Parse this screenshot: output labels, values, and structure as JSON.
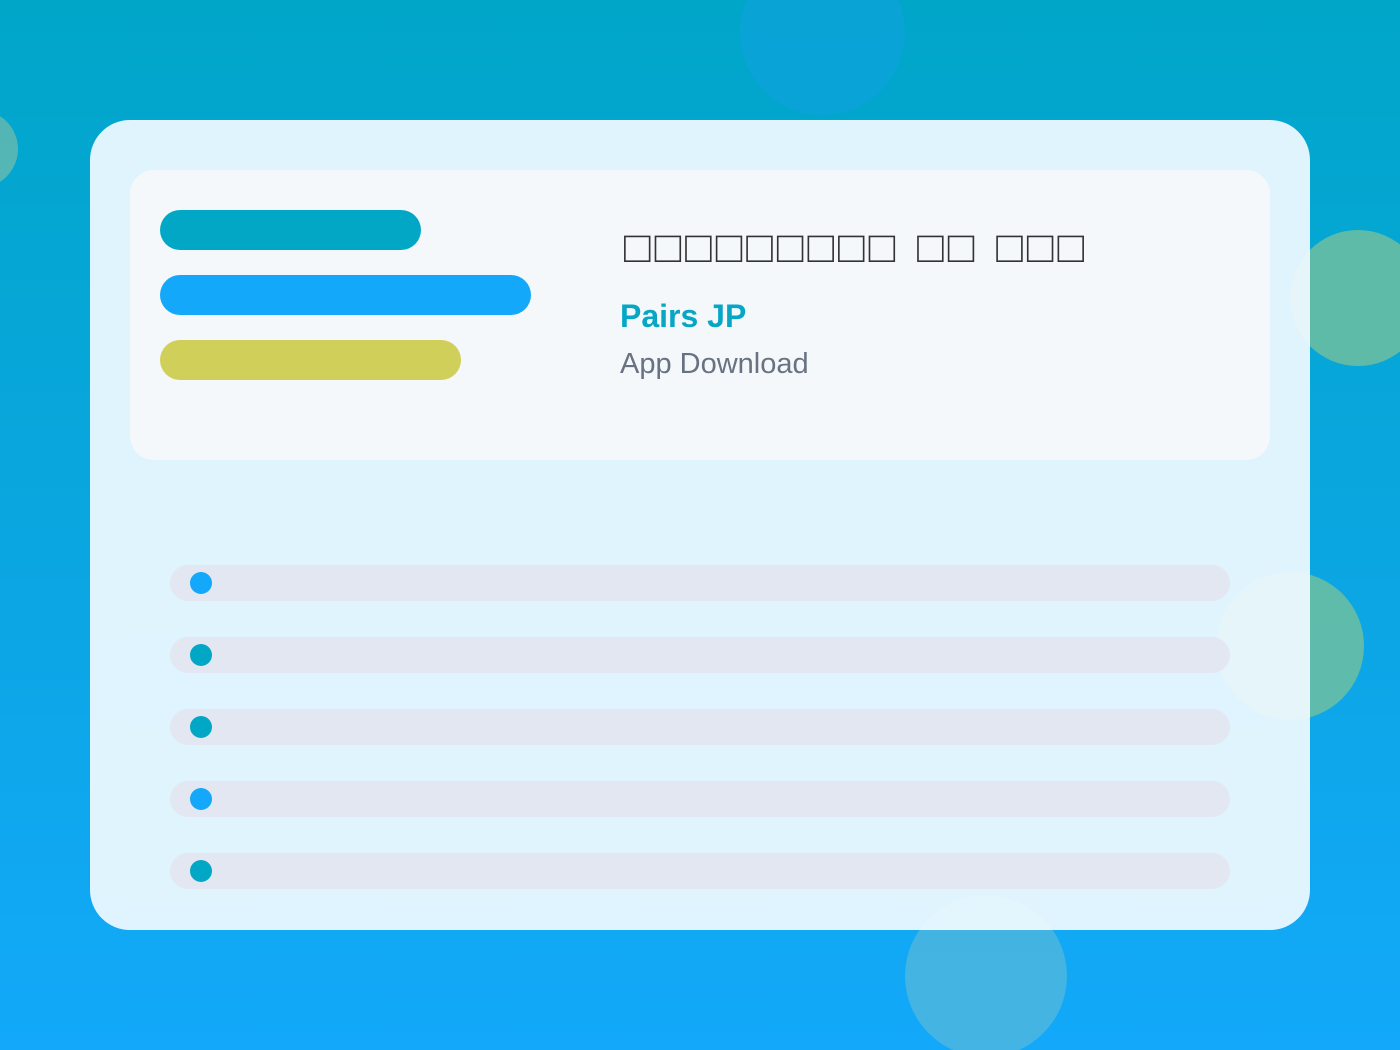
{
  "header": {
    "title": "□□□□□□□□□ □□ □□□",
    "app_name": "Pairs JP",
    "subtitle": "App Download"
  }
}
